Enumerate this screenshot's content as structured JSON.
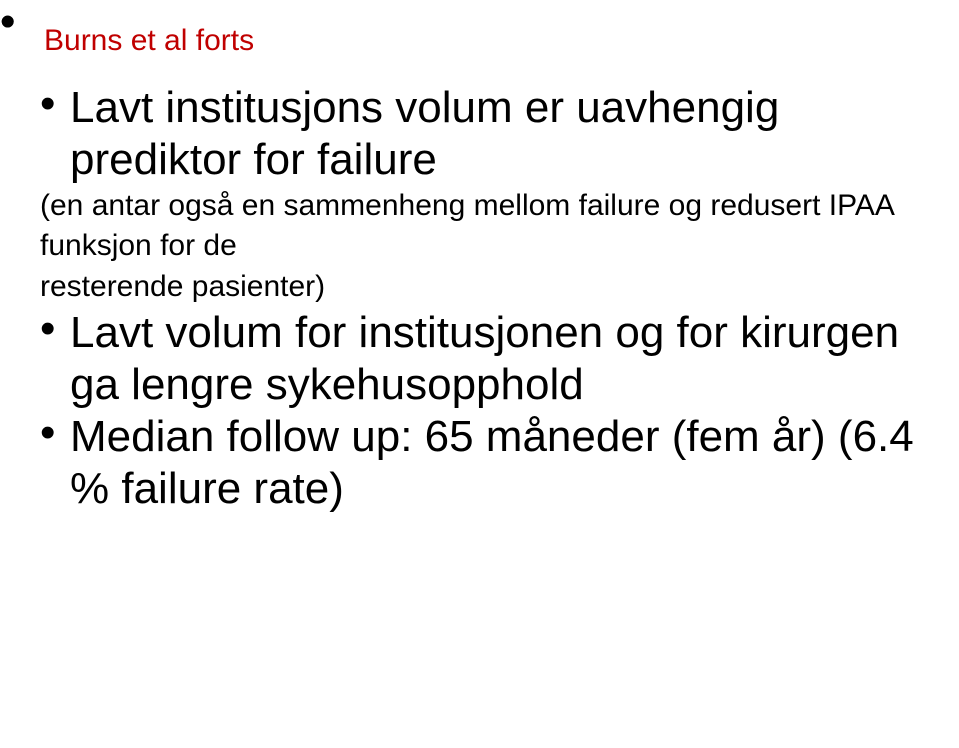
{
  "title": "Burns et al forts",
  "title_color": "#c00000",
  "body_color": "#000000",
  "background_color": "#ffffff",
  "font_family": "Arial",
  "fontsize_title": 30,
  "fontsize_big": 44,
  "fontsize_small": 30,
  "bullets": [
    {
      "text": "Lavt institusjons volum er uavhengig prediktor for failure",
      "class": "big",
      "space_after": "sp1"
    },
    {
      "text": "(en antar også en sammenheng mellom failure og redusert IPAA funksjon for de",
      "class": "small",
      "bulletless": true,
      "space_after": "sp2"
    },
    {
      "text": "resterende pasienter)",
      "class": "small",
      "bulletless": true,
      "space_after": "sp3"
    },
    {
      "text": "Lavt volum for institusjonen og for kirurgen ga lengre sykehusopphold",
      "class": "big",
      "space_after": "sp4"
    },
    {
      "text": "Median follow up: 65 måneder  (fem år) (6.4 % failure rate)",
      "class": "big"
    }
  ]
}
